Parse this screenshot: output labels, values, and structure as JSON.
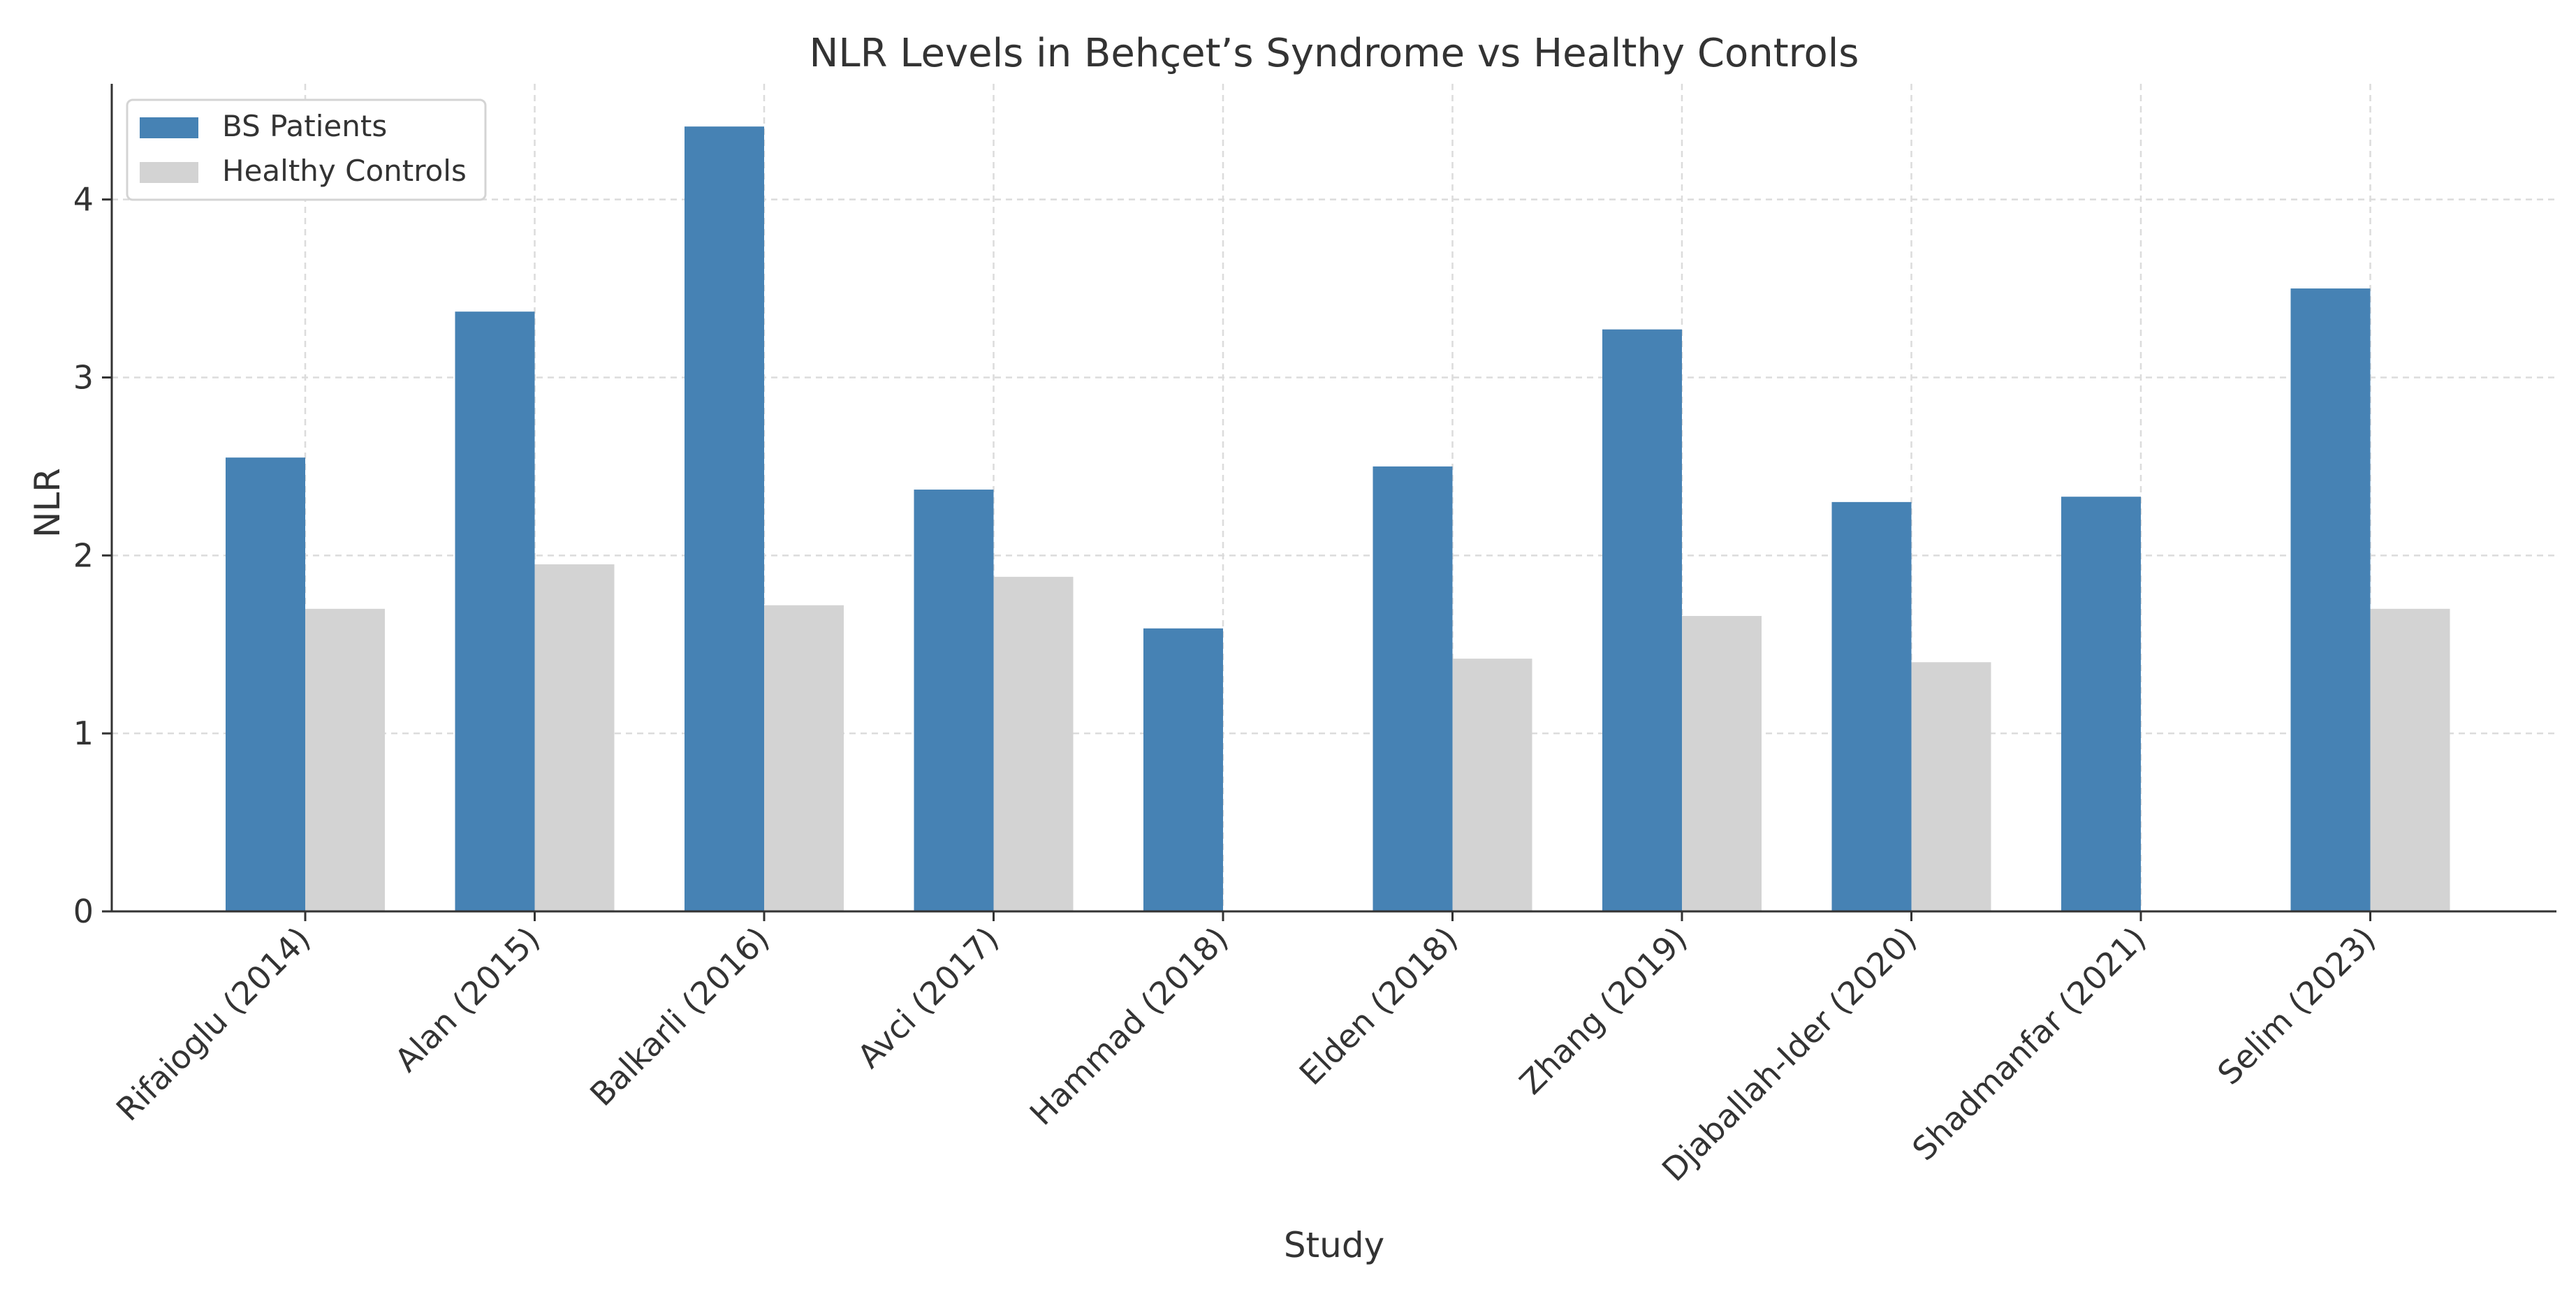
{
  "chart_data": {
    "type": "bar",
    "title": "NLR Levels in Behçet’s Syndrome vs Healthy Controls",
    "xlabel": "Study",
    "ylabel": "NLR",
    "ylim": [
      0,
      4.65
    ],
    "yticks": [
      "0",
      "1",
      "2",
      "3",
      "4"
    ],
    "grid": true,
    "legend_position": "top-left",
    "categories": [
      "Rifaioglu (2014)",
      "Alan (2015)",
      "Balkarli (2016)",
      "Avci (2017)",
      "Hammad (2018)",
      "Elden (2018)",
      "Zhang (2019)",
      "Djaballah-Ider (2020)",
      "Shadmanfar (2021)",
      "Selim (2023)"
    ],
    "series": [
      {
        "name": "BS Patients",
        "color": "#4682b4",
        "values": [
          2.55,
          3.37,
          4.41,
          2.37,
          1.59,
          2.5,
          3.27,
          2.3,
          2.33,
          3.5
        ]
      },
      {
        "name": "Healthy Controls",
        "color": "#d3d3d3",
        "values": [
          1.7,
          1.95,
          1.72,
          1.88,
          null,
          1.42,
          1.66,
          1.4,
          null,
          1.7
        ]
      }
    ]
  }
}
